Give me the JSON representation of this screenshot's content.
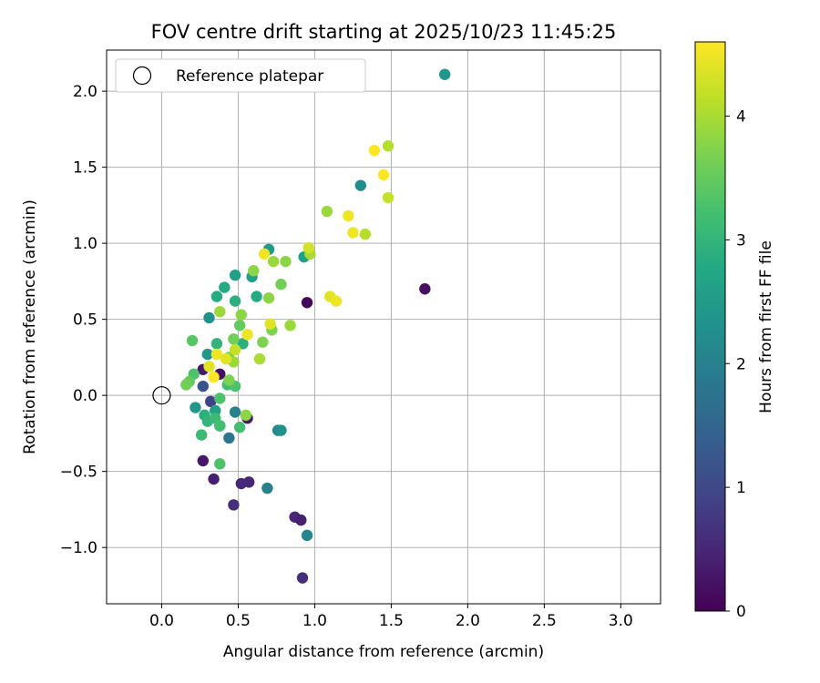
{
  "chart_data": {
    "type": "scatter",
    "title": "FOV centre drift starting at 2025/10/23 11:45:25",
    "xlabel": "Angular distance from reference (arcmin)",
    "ylabel": "Rotation from reference (arcmin)",
    "xlim": [
      -0.36,
      3.26
    ],
    "ylim": [
      -1.37,
      2.27
    ],
    "xticks": [
      0.0,
      0.5,
      1.0,
      1.5,
      2.0,
      2.5,
      3.0
    ],
    "xtick_labels": [
      "0.0",
      "0.5",
      "1.0",
      "1.5",
      "2.0",
      "2.5",
      "3.0"
    ],
    "yticks": [
      -1.0,
      -0.5,
      0.0,
      0.5,
      1.0,
      1.5,
      2.0
    ],
    "ytick_labels": [
      "−1.0",
      "−0.5",
      "0.0",
      "0.5",
      "1.0",
      "1.5",
      "2.0"
    ],
    "grid": true,
    "legend": {
      "location": "upper-left",
      "entries": [
        "Reference platepar"
      ]
    },
    "reference_point": {
      "x": 0.0,
      "y": 0.0
    },
    "colorbar": {
      "label": "Hours from first FF file",
      "colormap": "viridis",
      "range": [
        0,
        4.6
      ],
      "ticks": [
        0,
        1,
        2,
        3,
        4
      ],
      "tick_labels": [
        "0",
        "1",
        "2",
        "3",
        "4"
      ]
    },
    "points": [
      {
        "x": 0.95,
        "y": 0.61,
        "t": 0.1
      },
      {
        "x": 1.72,
        "y": 0.7,
        "t": 0.2
      },
      {
        "x": 0.27,
        "y": -0.43,
        "t": 0.3
      },
      {
        "x": 0.34,
        "y": -0.55,
        "t": 0.4
      },
      {
        "x": 0.47,
        "y": -0.72,
        "t": 0.6
      },
      {
        "x": 0.52,
        "y": -0.58,
        "t": 0.5
      },
      {
        "x": 0.57,
        "y": -0.57,
        "t": 0.5
      },
      {
        "x": 0.56,
        "y": -0.15,
        "t": 0.3
      },
      {
        "x": 0.38,
        "y": 0.14,
        "t": 0.2
      },
      {
        "x": 0.27,
        "y": 0.17,
        "t": 0.3
      },
      {
        "x": 0.87,
        "y": -0.8,
        "t": 0.5
      },
      {
        "x": 0.91,
        "y": -0.82,
        "t": 0.4
      },
      {
        "x": 0.92,
        "y": -1.2,
        "t": 0.6
      },
      {
        "x": 0.32,
        "y": -0.04,
        "t": 0.9
      },
      {
        "x": 0.27,
        "y": 0.06,
        "t": 1.2
      },
      {
        "x": 0.38,
        "y": -0.2,
        "t": 1.4
      },
      {
        "x": 0.44,
        "y": -0.28,
        "t": 1.8
      },
      {
        "x": 0.48,
        "y": -0.11,
        "t": 2.0
      },
      {
        "x": 0.69,
        "y": -0.61,
        "t": 2.0
      },
      {
        "x": 0.95,
        "y": -0.92,
        "t": 2.1
      },
      {
        "x": 0.76,
        "y": -0.23,
        "t": 2.1
      },
      {
        "x": 0.78,
        "y": -0.23,
        "t": 2.3
      },
      {
        "x": 0.22,
        "y": -0.08,
        "t": 2.4
      },
      {
        "x": 0.35,
        "y": -0.1,
        "t": 2.6
      },
      {
        "x": 0.31,
        "y": 0.51,
        "t": 2.3
      },
      {
        "x": 0.3,
        "y": 0.27,
        "t": 2.4
      },
      {
        "x": 1.85,
        "y": 2.11,
        "t": 2.4
      },
      {
        "x": 1.3,
        "y": 1.38,
        "t": 2.2
      },
      {
        "x": 0.7,
        "y": 0.96,
        "t": 2.5
      },
      {
        "x": 0.48,
        "y": 0.79,
        "t": 2.6
      },
      {
        "x": 0.59,
        "y": 0.78,
        "t": 2.6
      },
      {
        "x": 0.93,
        "y": 0.91,
        "t": 2.6
      },
      {
        "x": 0.41,
        "y": 0.71,
        "t": 2.8
      },
      {
        "x": 0.36,
        "y": 0.65,
        "t": 2.8
      },
      {
        "x": 0.48,
        "y": 0.62,
        "t": 2.9
      },
      {
        "x": 0.53,
        "y": 0.34,
        "t": 2.9
      },
      {
        "x": 0.62,
        "y": 0.65,
        "t": 2.8
      },
      {
        "x": 0.36,
        "y": 0.34,
        "t": 3.0
      },
      {
        "x": 0.28,
        "y": -0.13,
        "t": 2.9
      },
      {
        "x": 0.3,
        "y": -0.17,
        "t": 3.0
      },
      {
        "x": 0.35,
        "y": -0.15,
        "t": 3.1
      },
      {
        "x": 0.38,
        "y": -0.2,
        "t": 3.2
      },
      {
        "x": 0.26,
        "y": -0.26,
        "t": 3.1
      },
      {
        "x": 0.38,
        "y": -0.45,
        "t": 3.3
      },
      {
        "x": 0.51,
        "y": -0.21,
        "t": 3.2
      },
      {
        "x": 0.38,
        "y": -0.02,
        "t": 3.3
      },
      {
        "x": 0.43,
        "y": 0.07,
        "t": 3.2
      },
      {
        "x": 0.48,
        "y": 0.06,
        "t": 3.3
      },
      {
        "x": 0.21,
        "y": 0.14,
        "t": 3.3
      },
      {
        "x": 0.18,
        "y": 0.09,
        "t": 3.5
      },
      {
        "x": 0.16,
        "y": 0.07,
        "t": 3.6
      },
      {
        "x": 0.2,
        "y": 0.36,
        "t": 3.4
      },
      {
        "x": 0.44,
        "y": 0.25,
        "t": 3.6
      },
      {
        "x": 0.44,
        "y": 0.1,
        "t": 3.7
      },
      {
        "x": 0.47,
        "y": 0.37,
        "t": 3.6
      },
      {
        "x": 0.51,
        "y": 0.46,
        "t": 3.5
      },
      {
        "x": 0.55,
        "y": -0.13,
        "t": 3.8
      },
      {
        "x": 0.47,
        "y": 0.22,
        "t": 3.9
      },
      {
        "x": 0.38,
        "y": 0.55,
        "t": 3.9
      },
      {
        "x": 0.52,
        "y": 0.53,
        "t": 3.8
      },
      {
        "x": 0.66,
        "y": 0.35,
        "t": 3.7
      },
      {
        "x": 0.72,
        "y": 0.43,
        "t": 3.7
      },
      {
        "x": 0.7,
        "y": 0.64,
        "t": 3.8
      },
      {
        "x": 0.78,
        "y": 0.73,
        "t": 3.6
      },
      {
        "x": 0.6,
        "y": 0.82,
        "t": 3.8
      },
      {
        "x": 0.73,
        "y": 0.88,
        "t": 3.9
      },
      {
        "x": 0.81,
        "y": 0.88,
        "t": 3.8
      },
      {
        "x": 0.84,
        "y": 0.46,
        "t": 3.9
      },
      {
        "x": 0.64,
        "y": 0.24,
        "t": 4.0
      },
      {
        "x": 0.97,
        "y": 0.93,
        "t": 4.0
      },
      {
        "x": 1.08,
        "y": 1.21,
        "t": 3.9
      },
      {
        "x": 1.33,
        "y": 1.06,
        "t": 4.1
      },
      {
        "x": 1.48,
        "y": 1.64,
        "t": 4.1
      },
      {
        "x": 1.48,
        "y": 1.3,
        "t": 4.2
      },
      {
        "x": 0.48,
        "y": 0.3,
        "t": 4.2
      },
      {
        "x": 0.96,
        "y": 0.97,
        "t": 4.3
      },
      {
        "x": 0.31,
        "y": 0.19,
        "t": 4.4
      },
      {
        "x": 0.36,
        "y": 0.27,
        "t": 4.5
      },
      {
        "x": 0.34,
        "y": 0.12,
        "t": 4.6
      },
      {
        "x": 0.42,
        "y": 0.24,
        "t": 4.4
      },
      {
        "x": 0.56,
        "y": 0.4,
        "t": 4.5
      },
      {
        "x": 0.67,
        "y": 0.93,
        "t": 4.5
      },
      {
        "x": 0.71,
        "y": 0.47,
        "t": 4.4
      },
      {
        "x": 1.1,
        "y": 0.65,
        "t": 4.4
      },
      {
        "x": 1.14,
        "y": 0.62,
        "t": 4.5
      },
      {
        "x": 1.22,
        "y": 1.18,
        "t": 4.5
      },
      {
        "x": 1.25,
        "y": 1.07,
        "t": 4.5
      },
      {
        "x": 1.39,
        "y": 1.61,
        "t": 4.6
      },
      {
        "x": 1.45,
        "y": 1.45,
        "t": 4.6
      }
    ]
  }
}
